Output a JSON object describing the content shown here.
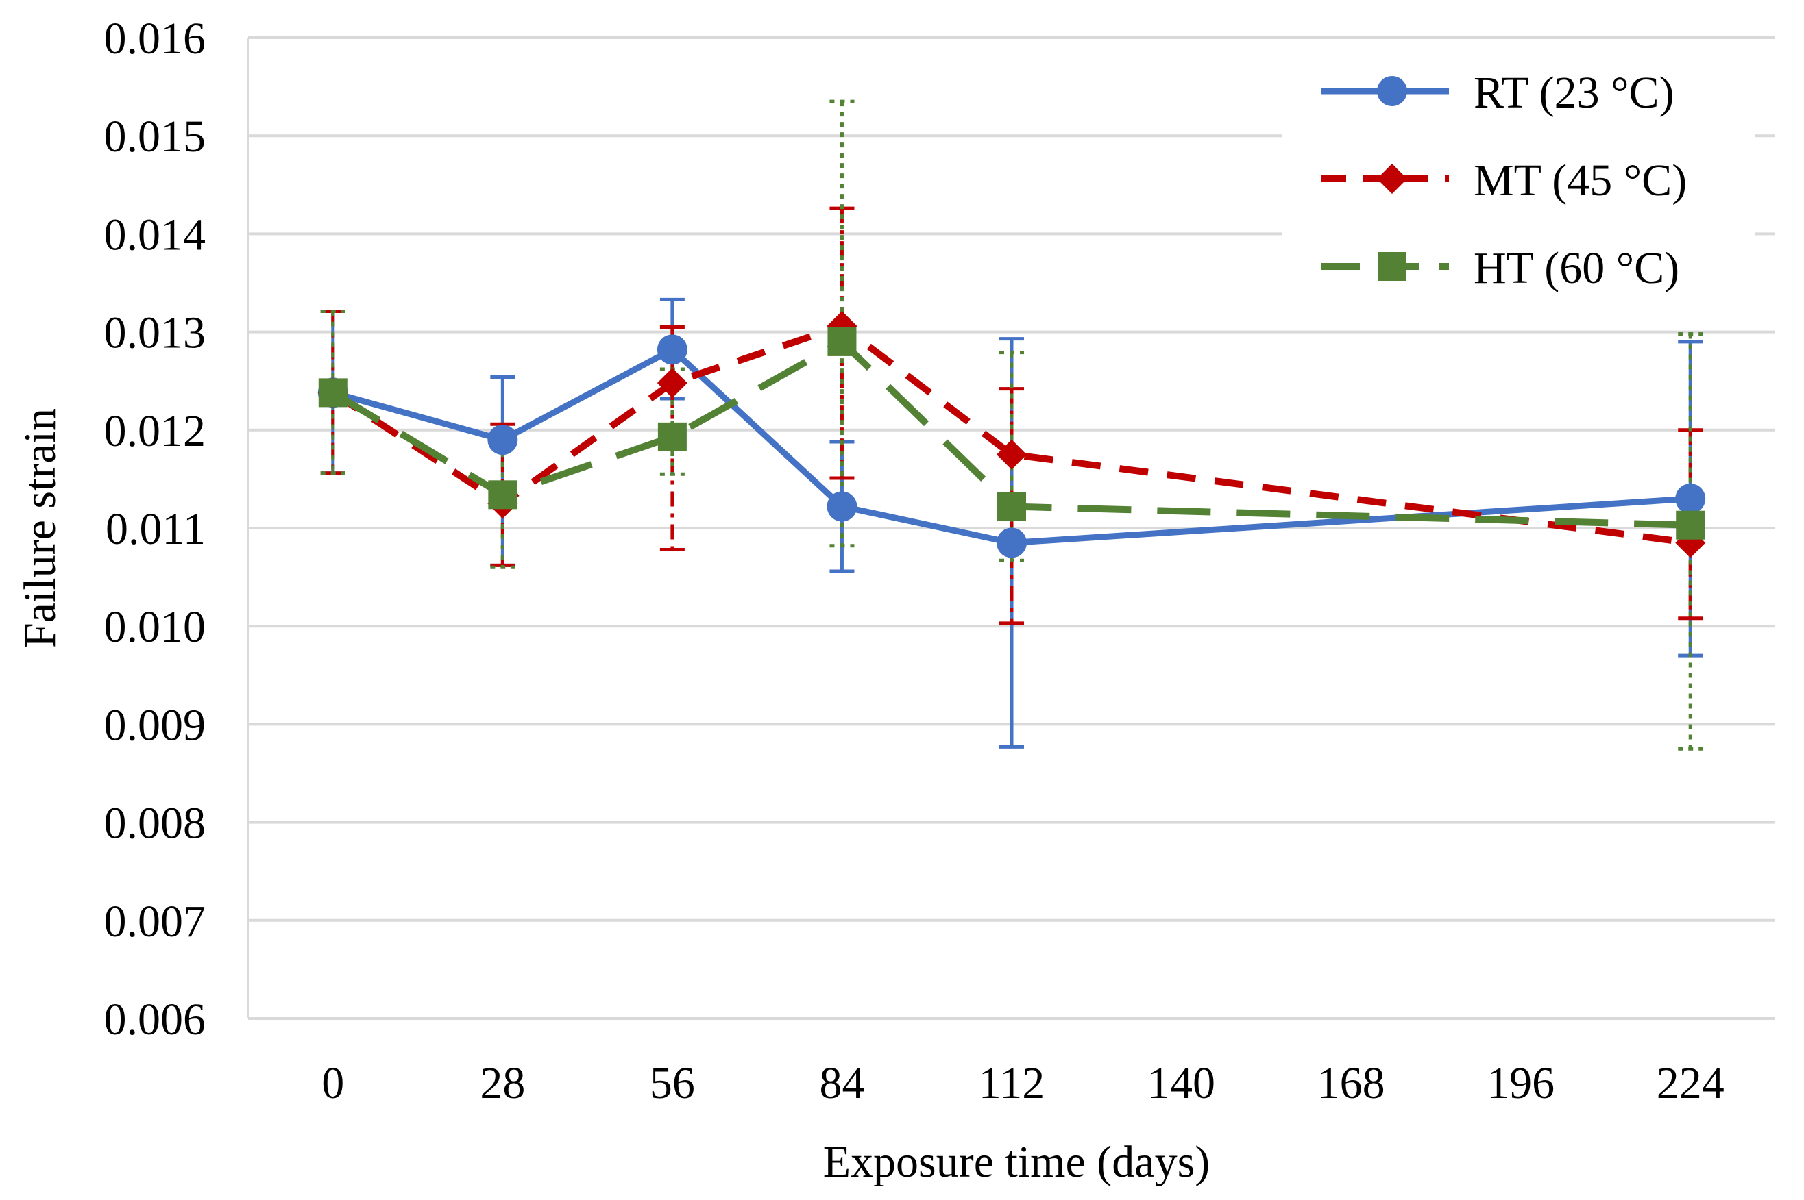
{
  "chart_data": {
    "type": "line",
    "title": "",
    "xlabel": "Exposure time (days)",
    "ylabel": "Failure strain",
    "x_ticks": [
      "0",
      "28",
      "56",
      "84",
      "112",
      "140",
      "168",
      "196",
      "224"
    ],
    "y_ticks": [
      "0.006",
      "0.007",
      "0.008",
      "0.009",
      "0.010",
      "0.011",
      "0.012",
      "0.013",
      "0.014",
      "0.015",
      "0.016"
    ],
    "xlim": [
      0,
      224
    ],
    "ylim": [
      0.006,
      0.016
    ],
    "grid": "horizontal",
    "legend_position": "top-right",
    "series": [
      {
        "name": "RT (23 °C)",
        "label": "RT (23 °C)",
        "color": "#4472C4",
        "marker": "circle",
        "line_style": "solid",
        "errorbar_style": "solid",
        "x": [
          0,
          28,
          56,
          84,
          112,
          224
        ],
        "values": [
          0.01238,
          0.0119,
          0.01282,
          0.01122,
          0.01085,
          0.0113
        ],
        "err_high": [
          0.01321,
          0.01254,
          0.01333,
          0.01188,
          0.01293,
          0.0129
        ],
        "err_low": [
          0.01156,
          0.01062,
          0.01232,
          0.01056,
          0.00877,
          0.0097
        ]
      },
      {
        "name": "MT (45 °C)",
        "label": "MT (45 °C)",
        "color": "#C00000",
        "marker": "diamond",
        "line_style": "dash",
        "errorbar_style": "dashdot",
        "x": [
          0,
          28,
          56,
          84,
          112,
          224
        ],
        "values": [
          0.01238,
          0.01125,
          0.01248,
          0.01306,
          0.01175,
          0.01085
        ],
        "err_high": [
          0.01321,
          0.01206,
          0.01305,
          0.01426,
          0.01242,
          0.012
        ],
        "err_low": [
          0.01156,
          0.01062,
          0.01078,
          0.01151,
          0.01003,
          0.01008
        ]
      },
      {
        "name": "HT (60 °C)",
        "label": "HT (60 °C)",
        "color": "#548235",
        "marker": "square",
        "line_style": "longdash",
        "errorbar_style": "dotted",
        "x": [
          0,
          28,
          56,
          84,
          112,
          224
        ],
        "values": [
          0.01238,
          0.01134,
          0.01193,
          0.0129,
          0.01122,
          0.01103
        ],
        "err_high": [
          0.01321,
          0.01188,
          0.01262,
          0.01535,
          0.01279,
          0.01298
        ],
        "err_low": [
          0.01156,
          0.0106,
          0.01155,
          0.01082,
          0.01067,
          0.00875
        ]
      }
    ]
  }
}
